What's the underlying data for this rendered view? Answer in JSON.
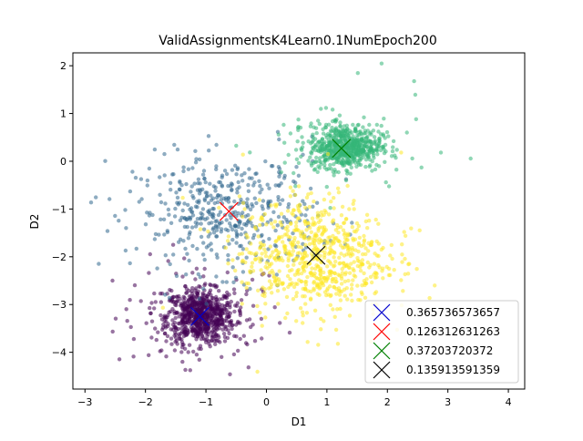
{
  "chart_data": {
    "type": "scatter",
    "title": "ValidAssignmentsK4Learn0.1NumEpoch200",
    "xlabel": "D1",
    "ylabel": "D2",
    "xlim": [
      -3.2,
      4.27
    ],
    "ylim": [
      -4.77,
      2.27
    ],
    "xticks": [
      -3,
      -2,
      -1,
      0,
      1,
      2,
      3,
      4
    ],
    "yticks": [
      2,
      1,
      0,
      -1,
      -2,
      -3,
      -4
    ],
    "legend_position": "lower right",
    "grid": false,
    "clusters": [
      {
        "color": "#440154",
        "center": [
          -1.1,
          -3.25
        ],
        "spread": [
          0.28,
          0.28
        ],
        "count": 700,
        "outer_spread": [
          0.7,
          0.6
        ],
        "outer_count": 120
      },
      {
        "color": "#31688e",
        "center": [
          -0.65,
          -1.1
        ],
        "spread": [
          0.75,
          0.6
        ],
        "count": 420,
        "outer_spread": [
          1.0,
          0.8
        ],
        "outer_count": 40
      },
      {
        "color": "#35b779",
        "center": [
          1.3,
          0.3
        ],
        "spread": [
          0.3,
          0.22
        ],
        "count": 600,
        "outer_spread": [
          0.7,
          0.6
        ],
        "outer_count": 80
      },
      {
        "color": "#fde725",
        "center": [
          0.8,
          -2.0
        ],
        "spread": [
          0.6,
          0.6
        ],
        "count": 650,
        "outer_spread": [
          0.9,
          0.8
        ],
        "outer_count": 60
      }
    ],
    "centroids": [
      {
        "x": -1.1,
        "y": -3.25,
        "color": "#0000cd"
      },
      {
        "x": -0.62,
        "y": -1.05,
        "color": "#ff0000"
      },
      {
        "x": 1.24,
        "y": 0.27,
        "color": "#008000"
      },
      {
        "x": 0.82,
        "y": -1.97,
        "color": "#000000"
      }
    ],
    "legend": [
      {
        "label": "0.365736573657",
        "color": "#0000cd"
      },
      {
        "label": "0.126312631263",
        "color": "#ff0000"
      },
      {
        "label": "0.37203720372",
        "color": "#008000"
      },
      {
        "label": "0.135913591359",
        "color": "#000000"
      }
    ]
  }
}
